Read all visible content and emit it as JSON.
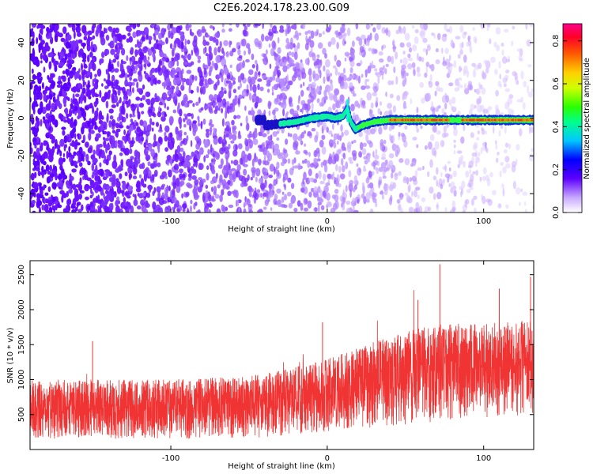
{
  "title": "C2E6.2024.178.23.00.G09",
  "chart_data": [
    {
      "type": "heatmap",
      "xlabel": "Height of straight line (km)",
      "ylabel": "Frequency (Hz)",
      "xlim": [
        -190,
        132
      ],
      "ylim": [
        -50,
        50
      ],
      "xticks": [
        -100,
        0,
        100
      ],
      "yticks": [
        -40,
        -20,
        0,
        20,
        40
      ],
      "colorbar": {
        "label": "Normalized spectral amplitude",
        "range": [
          0.0,
          0.88
        ],
        "ticks": [
          0.0,
          0.2,
          0.4,
          0.6,
          0.8
        ],
        "tick_labels": [
          "0.0",
          "0.2",
          "0.4",
          "0.6",
          "0.8"
        ]
      },
      "signal_trace": {
        "description_values": "frequency (Hz) of dominant signal vs height (km)",
        "x": [
          -40,
          -30,
          -20,
          -10,
          0,
          5,
          10,
          13,
          15,
          18,
          22,
          30,
          40,
          50,
          60,
          70,
          80,
          90,
          100,
          110,
          120,
          132
        ],
        "y": [
          -4,
          -3,
          -2,
          0,
          1,
          0,
          1,
          5,
          -2,
          -6,
          -4,
          -2,
          -1,
          -1,
          -1,
          -1,
          -1,
          -1,
          -1,
          -1,
          -1,
          -1
        ]
      }
    },
    {
      "type": "line",
      "xlabel": "Height of straight line (km)",
      "ylabel": "SNR (10 * v/v)",
      "xlim": [
        -190,
        132
      ],
      "ylim": [
        0,
        2700
      ],
      "xticks": [
        -100,
        0,
        100
      ],
      "yticks": [
        500,
        1000,
        1500,
        2000,
        2500
      ],
      "series": [
        {
          "name": "SNR",
          "color": "#f03333",
          "envelope_x": [
            -190,
            -150,
            -100,
            -50,
            -25,
            0,
            25,
            50,
            75,
            100,
            132
          ],
          "envelope_low": [
            150,
            150,
            150,
            160,
            200,
            250,
            300,
            350,
            400,
            450,
            500
          ],
          "envelope_high": [
            1000,
            1000,
            1000,
            1050,
            1150,
            1300,
            1500,
            1700,
            1800,
            1800,
            1850
          ],
          "peaks": [
            {
              "x": 72,
              "y": 2650
            },
            {
              "x": -3,
              "y": 1820
            },
            {
              "x": 58,
              "y": 2140
            },
            {
              "x": 110,
              "y": 2300
            },
            {
              "x": 130,
              "y": 2470
            },
            {
              "x": -150,
              "y": 1550
            }
          ]
        }
      ]
    }
  ]
}
